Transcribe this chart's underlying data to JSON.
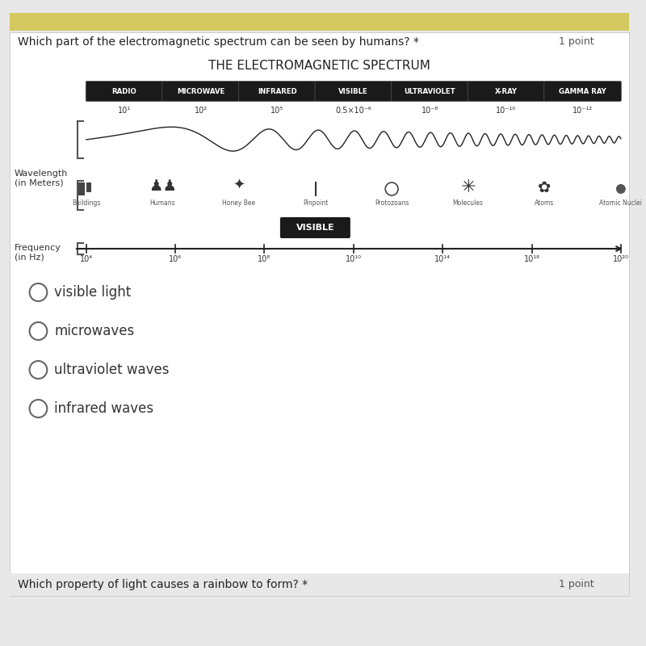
{
  "title_question": "Which part of the electromagnetic spectrum can be seen by humans?",
  "title_points": "1 point",
  "spectrum_title": "THE ELECTROMAGNETIC SPECTRUM",
  "bg_color": "#e8e8e8",
  "card_bg": "#ffffff",
  "header_bar_color": "#d4c860",
  "bands": [
    "RADIO",
    "MICROWAVE",
    "INFRARED",
    "VISIBLE",
    "ULTRAVIOLET",
    "X-RAY",
    "GAMMA RAY"
  ],
  "band_color": "#1a1a1a",
  "band_text_color": "#ffffff",
  "wavelength_labels": [
    "10¹",
    "10²",
    "10⁵",
    "0.5×10⁻⁶",
    "10⁻⁸",
    "10⁻¹⁰",
    "10⁻¹²"
  ],
  "size_labels": [
    "Buildings",
    "Humans",
    "Honey Bee",
    "Pinpoint",
    "Protozoans",
    "Molecules",
    "Atoms",
    "Atomic Nuclei"
  ],
  "frequency_labels": [
    "10⁴",
    "10⁶",
    "10⁸",
    "10¹⁰",
    "10¹⁴",
    "10¹⁸",
    "10²⁰"
  ],
  "visible_label": "VISIBLE",
  "wavelength_axis_label": "Wavelength\n(in Meters)",
  "frequency_axis_label": "Frequency\n(in Hz)",
  "choices": [
    "visible light",
    "microwaves",
    "ultraviolet waves",
    "infrared waves"
  ],
  "bottom_question": "Which property of light causes a rainbow to form?",
  "bottom_points": "1 point"
}
